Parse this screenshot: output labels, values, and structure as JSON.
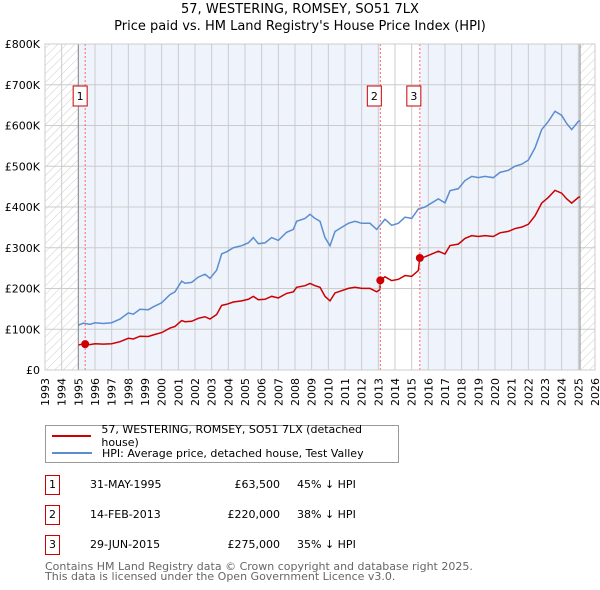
{
  "title": "57, WESTERING, ROMSEY, SO51 7LX",
  "subtitle": "Price paid vs. HM Land Registry's House Price Index (HPI)",
  "chart_data": {
    "type": "line",
    "xlim": [
      1993,
      2026
    ],
    "ylim": [
      0,
      800000
    ],
    "x_ticks": [
      "1993",
      "1994",
      "1995",
      "1996",
      "1997",
      "1998",
      "1999",
      "2000",
      "2001",
      "2002",
      "2003",
      "2004",
      "2005",
      "2006",
      "2007",
      "2008",
      "2009",
      "2010",
      "2011",
      "2012",
      "2013",
      "2014",
      "2015",
      "2016",
      "2017",
      "2018",
      "2019",
      "2020",
      "2021",
      "2022",
      "2023",
      "2024",
      "2025",
      "2026"
    ],
    "y_ticks": [
      {
        "v": 0,
        "label": "£0"
      },
      {
        "v": 100000,
        "label": "£100K"
      },
      {
        "v": 200000,
        "label": "£200K"
      },
      {
        "v": 300000,
        "label": "£300K"
      },
      {
        "v": 400000,
        "label": "£400K"
      },
      {
        "v": 500000,
        "label": "£500K"
      },
      {
        "v": 600000,
        "label": "£600K"
      },
      {
        "v": 700000,
        "label": "£700K"
      },
      {
        "v": 800000,
        "label": "£800K"
      }
    ],
    "data_range": [
      1995,
      2025.1
    ],
    "colors": {
      "property": "#cc0000",
      "hpi": "#5b8dd0",
      "bg": "#eef3fc"
    },
    "hpi": [
      [
        1995,
        110
      ],
      [
        1995.3,
        115
      ],
      [
        1995.7,
        112
      ],
      [
        1996,
        116
      ],
      [
        1996.5,
        114
      ],
      [
        1997,
        116
      ],
      [
        1997.5,
        125
      ],
      [
        1998,
        140
      ],
      [
        1998.3,
        137
      ],
      [
        1998.7,
        149
      ],
      [
        1999.2,
        148
      ],
      [
        1999.5,
        155
      ],
      [
        2000,
        165
      ],
      [
        2000.5,
        185
      ],
      [
        2000.8,
        192
      ],
      [
        2001.2,
        218
      ],
      [
        2001.4,
        213
      ],
      [
        2001.8,
        215
      ],
      [
        2002.2,
        228
      ],
      [
        2002.6,
        235
      ],
      [
        2002.9,
        225
      ],
      [
        2003.3,
        245
      ],
      [
        2003.6,
        285
      ],
      [
        2003.9,
        290
      ],
      [
        2004.3,
        300
      ],
      [
        2004.8,
        305
      ],
      [
        2005.2,
        312
      ],
      [
        2005.5,
        325
      ],
      [
        2005.8,
        310
      ],
      [
        2006.2,
        312
      ],
      [
        2006.6,
        325
      ],
      [
        2007,
        318
      ],
      [
        2007.5,
        338
      ],
      [
        2007.9,
        345
      ],
      [
        2008.1,
        365
      ],
      [
        2008.6,
        372
      ],
      [
        2008.9,
        382
      ],
      [
        2009.2,
        372
      ],
      [
        2009.5,
        365
      ],
      [
        2009.8,
        325
      ],
      [
        2010.1,
        305
      ],
      [
        2010.4,
        340
      ],
      [
        2010.8,
        350
      ],
      [
        2011.2,
        360
      ],
      [
        2011.6,
        365
      ],
      [
        2012,
        360
      ],
      [
        2012.5,
        360
      ],
      [
        2012.9,
        345
      ],
      [
        2013.1,
        355
      ],
      [
        2013.4,
        370
      ],
      [
        2013.8,
        355
      ],
      [
        2014.2,
        360
      ],
      [
        2014.6,
        375
      ],
      [
        2015,
        372
      ],
      [
        2015.4,
        395
      ],
      [
        2015.8,
        400
      ],
      [
        2016.2,
        410
      ],
      [
        2016.6,
        420
      ],
      [
        2017,
        410
      ],
      [
        2017.3,
        440
      ],
      [
        2017.8,
        445
      ],
      [
        2018.2,
        465
      ],
      [
        2018.6,
        475
      ],
      [
        2019,
        472
      ],
      [
        2019.4,
        475
      ],
      [
        2019.9,
        472
      ],
      [
        2020.3,
        485
      ],
      [
        2020.8,
        490
      ],
      [
        2021.2,
        500
      ],
      [
        2021.6,
        505
      ],
      [
        2022,
        515
      ],
      [
        2022.4,
        545
      ],
      [
        2022.8,
        590
      ],
      [
        2023.2,
        610
      ],
      [
        2023.6,
        635
      ],
      [
        2024,
        625
      ],
      [
        2024.3,
        605
      ],
      [
        2024.6,
        590
      ],
      [
        2025,
        610
      ],
      [
        2025.1,
        612
      ]
    ],
    "sales": [
      {
        "id": "1",
        "date": "31-MAY-1995",
        "t": 1995.41,
        "price": 63500,
        "price_label": "£63,500",
        "rel": "45% ↓ HPI"
      },
      {
        "id": "2",
        "date": "14-FEB-2013",
        "t": 2013.12,
        "price": 220000,
        "price_label": "£220,000",
        "rel": "38% ↓ HPI"
      },
      {
        "id": "3",
        "date": "29-JUN-2015",
        "t": 2015.49,
        "price": 275000,
        "price_label": "£275,000",
        "rel": "35% ↓ HPI"
      }
    ]
  },
  "legend": {
    "property": "57, WESTERING, ROMSEY, SO51 7LX (detached house)",
    "hpi": "HPI: Average price, detached house, Test Valley"
  },
  "footer": [
    "Contains HM Land Registry data © Crown copyright and database right 2025.",
    "This data is licensed under the Open Government Licence v3.0."
  ]
}
